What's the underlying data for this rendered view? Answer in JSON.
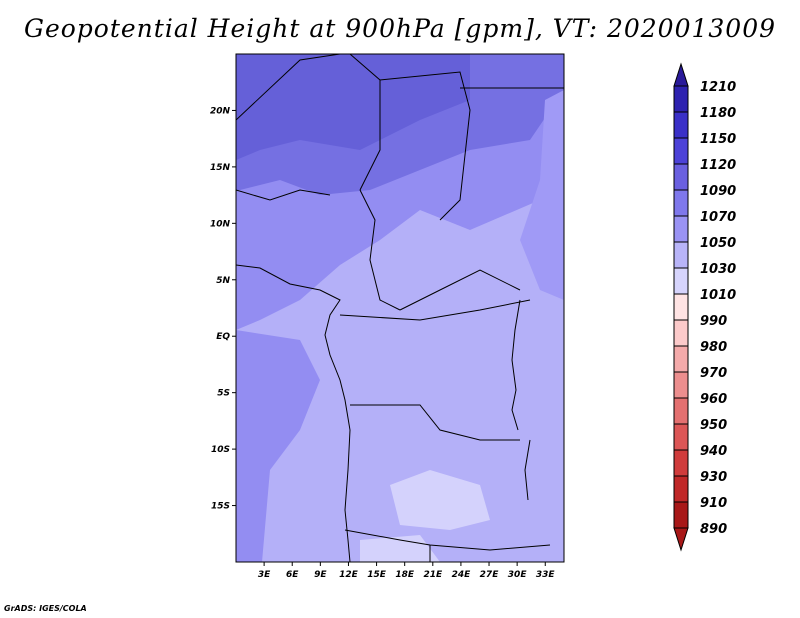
{
  "title": "Geopotential Height at 900hPa [gpm], VT: 2020013009",
  "footer": "GrADS: IGES/COLA",
  "map": {
    "lon_range": [
      0,
      35
    ],
    "lat_range": [
      -20,
      25
    ],
    "lat_ticks": [
      {
        "value": 20,
        "label": "20N"
      },
      {
        "value": 15,
        "label": "15N"
      },
      {
        "value": 10,
        "label": "10N"
      },
      {
        "value": 5,
        "label": "5N"
      },
      {
        "value": 0,
        "label": "EQ"
      },
      {
        "value": -5,
        "label": "5S"
      },
      {
        "value": -10,
        "label": "10S"
      },
      {
        "value": -15,
        "label": "15S"
      }
    ],
    "lon_ticks": [
      {
        "value": 3,
        "label": "3E"
      },
      {
        "value": 6,
        "label": "6E"
      },
      {
        "value": 9,
        "label": "9E"
      },
      {
        "value": 12,
        "label": "12E"
      },
      {
        "value": 15,
        "label": "15E"
      },
      {
        "value": 18,
        "label": "18E"
      },
      {
        "value": 21,
        "label": "21E"
      },
      {
        "value": 24,
        "label": "24E"
      },
      {
        "value": 27,
        "label": "27E"
      },
      {
        "value": 30,
        "label": "30E"
      },
      {
        "value": 33,
        "label": "33E"
      }
    ]
  },
  "colorbar": {
    "levels": [
      "1210",
      "1180",
      "1150",
      "1120",
      "1090",
      "1070",
      "1050",
      "1030",
      "1010",
      "990",
      "980",
      "970",
      "960",
      "950",
      "940",
      "930",
      "910",
      "890"
    ],
    "colors": [
      "#2a1a9a",
      "#2e22b0",
      "#3a30c8",
      "#4c42d8",
      "#6a60e0",
      "#7f78ec",
      "#9a93f4",
      "#b8b4f8",
      "#d6d4fc",
      "#ffe4e4",
      "#fccaca",
      "#f4aaaa",
      "#ec8e8e",
      "#e47070",
      "#dc5656",
      "#d03c3c",
      "#c02828",
      "#a81818"
    ]
  },
  "fields": {
    "color_far_north": "#6560d8",
    "color_north": "#7570e2",
    "color_mid": "#938df2",
    "color_south": "#b4b0f8",
    "color_lowest": "#d4d2fc"
  }
}
